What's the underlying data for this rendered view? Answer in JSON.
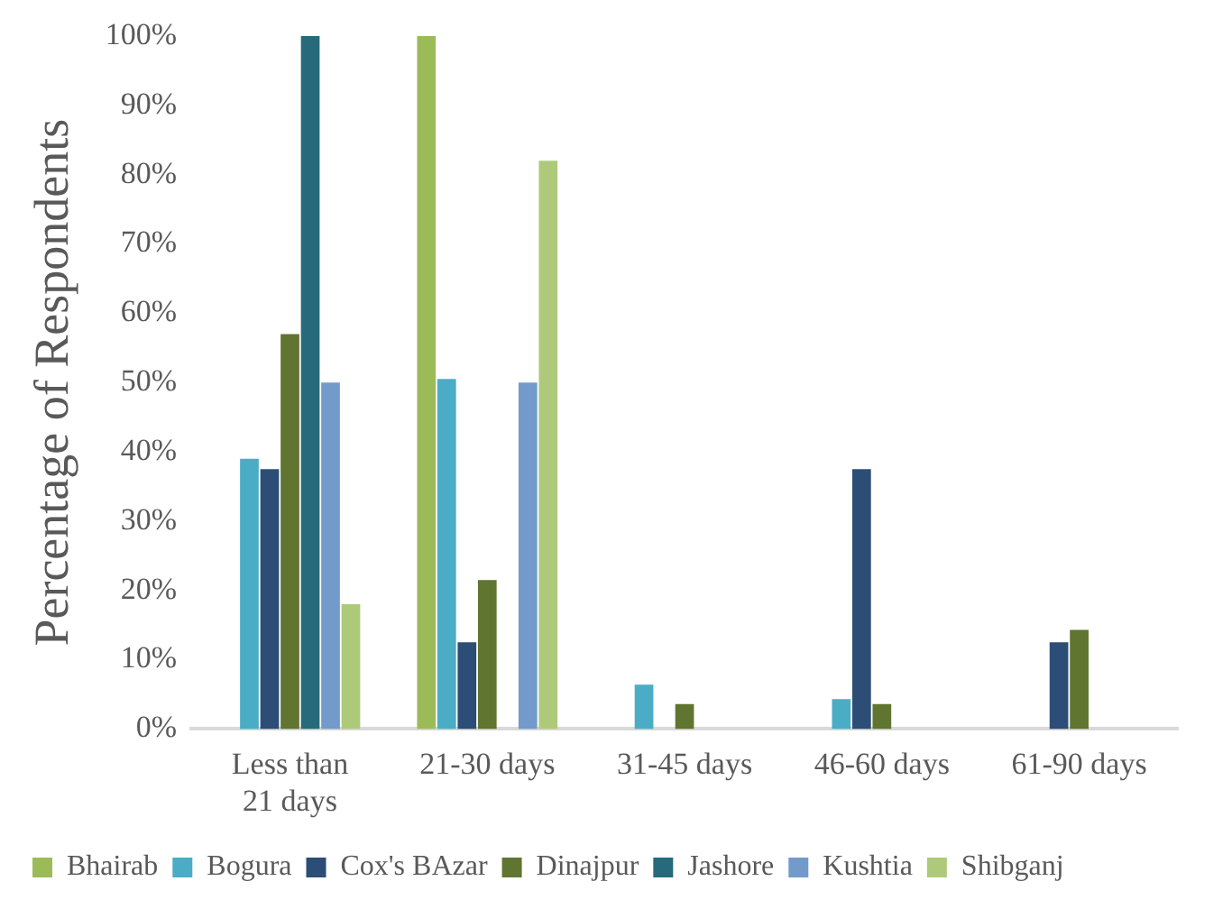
{
  "chart_data": {
    "type": "bar",
    "ylabel": "Percentage of Respondents",
    "categories": [
      "Less than 21 days",
      "21-30 days",
      "31-45 days",
      "46-60 days",
      "61-90 days"
    ],
    "series": [
      {
        "name": "Bhairab",
        "color": "#9bbb59",
        "values": [
          0,
          100,
          0,
          0,
          0
        ]
      },
      {
        "name": "Bogura",
        "color": "#4bacc6",
        "values": [
          39,
          50.5,
          6.4,
          4.3,
          0
        ]
      },
      {
        "name": "Cox's BAzar",
        "color": "#2c4d75",
        "values": [
          37.5,
          12.5,
          0,
          37.5,
          12.5
        ]
      },
      {
        "name": "Dinajpur",
        "color": "#5f7530",
        "values": [
          57,
          21.5,
          3.6,
          3.6,
          14.3
        ]
      },
      {
        "name": "Jashore",
        "color": "#276a7c",
        "values": [
          100,
          0,
          0,
          0,
          0
        ]
      },
      {
        "name": "Kushtia",
        "color": "#729aca",
        "values": [
          50,
          50,
          0,
          0,
          0
        ]
      },
      {
        "name": "Shibganj",
        "color": "#afc97a",
        "values": [
          18,
          82,
          0,
          0,
          0
        ]
      }
    ],
    "ylim": [
      0,
      100
    ],
    "yticks": [
      {
        "value": 0,
        "label": "0%"
      },
      {
        "value": 10,
        "label": "10%"
      },
      {
        "value": 20,
        "label": "20%"
      },
      {
        "value": 30,
        "label": "30%"
      },
      {
        "value": 40,
        "label": "40%"
      },
      {
        "value": 50,
        "label": "50%"
      },
      {
        "value": 60,
        "label": "60%"
      },
      {
        "value": 70,
        "label": "70%"
      },
      {
        "value": 80,
        "label": "80%"
      },
      {
        "value": 90,
        "label": "90%"
      },
      {
        "value": 100,
        "label": "100%"
      }
    ],
    "grid": false,
    "legend": "bottom"
  }
}
